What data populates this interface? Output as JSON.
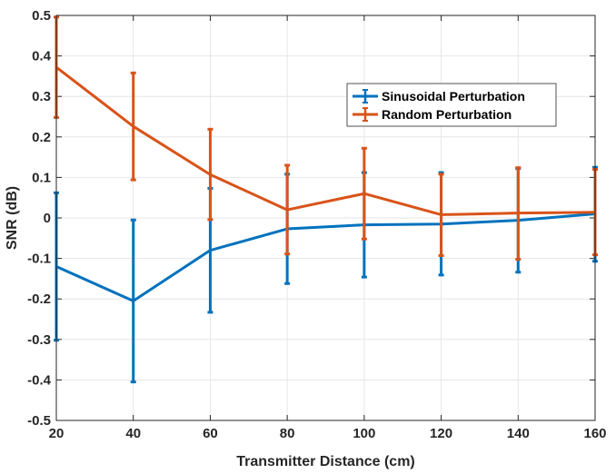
{
  "chart_data": {
    "type": "line",
    "title": "",
    "xlabel": "Transmitter Distance (cm)",
    "ylabel": "SNR (dB)",
    "xlim": [
      20,
      160
    ],
    "ylim": [
      -0.5,
      0.5
    ],
    "x_ticks": [
      20,
      40,
      60,
      80,
      100,
      120,
      140,
      160
    ],
    "y_ticks": [
      -0.5,
      -0.4,
      -0.3,
      -0.2,
      -0.1,
      0,
      0.1,
      0.2,
      0.3,
      0.4,
      0.5
    ],
    "x_tick_labels": [
      "20",
      "40",
      "60",
      "80",
      "100",
      "120",
      "140",
      "160"
    ],
    "y_tick_labels": [
      "-0.5",
      "-0.4",
      "-0.3",
      "-0.2",
      "-0.1",
      "0",
      "0.1",
      "0.2",
      "0.3",
      "0.4",
      "0.5"
    ],
    "grid": true,
    "legend_position": "upper-right-inside",
    "x": [
      20,
      40,
      60,
      80,
      100,
      120,
      140,
      160
    ],
    "series": [
      {
        "name": "Sinusoidal Perturbation",
        "color": "#0072BD",
        "values": [
          -0.12,
          -0.205,
          -0.08,
          -0.027,
          -0.017,
          -0.015,
          -0.006,
          0.01
        ],
        "err_low": [
          -0.302,
          -0.405,
          -0.233,
          -0.162,
          -0.146,
          -0.141,
          -0.134,
          -0.107
        ],
        "err_high": [
          0.062,
          -0.005,
          0.073,
          0.108,
          0.112,
          0.112,
          0.122,
          0.125
        ]
      },
      {
        "name": "Random Perturbation",
        "color": "#D95319",
        "values": [
          0.372,
          0.226,
          0.107,
          0.02,
          0.06,
          0.008,
          0.012,
          0.014
        ],
        "err_low": [
          0.248,
          0.094,
          -0.004,
          -0.089,
          -0.052,
          -0.093,
          -0.102,
          -0.091
        ],
        "err_high": [
          0.496,
          0.358,
          0.219,
          0.13,
          0.172,
          0.108,
          0.124,
          0.12
        ]
      }
    ]
  }
}
